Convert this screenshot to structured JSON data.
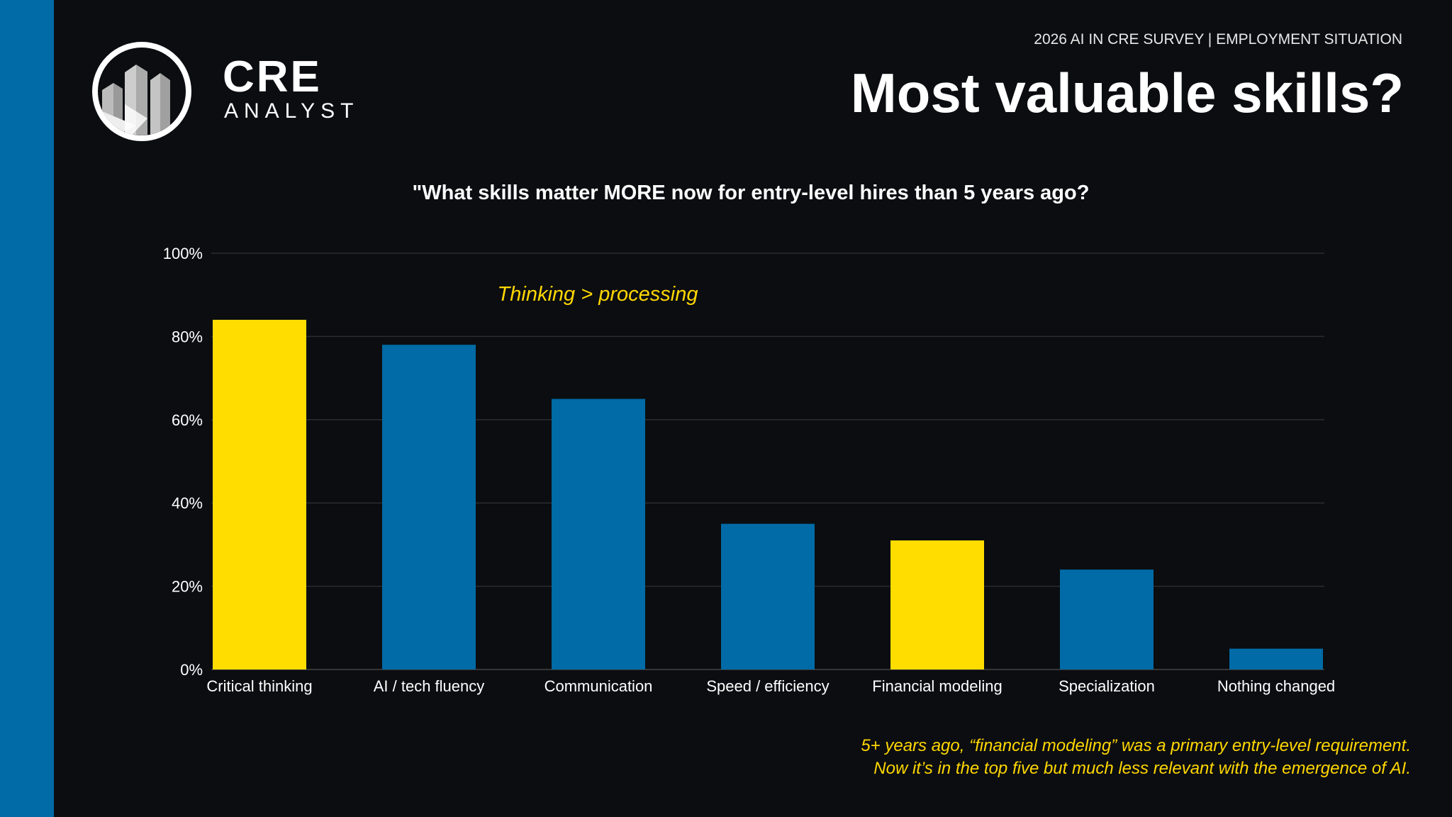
{
  "header": {
    "brand_top": "CRE",
    "brand_bottom": "ANALYST",
    "survey_label": "2026 AI IN CRE SURVEY | EMPLOYMENT SITUATION",
    "title": "Most valuable skills?"
  },
  "chart_data": {
    "type": "bar",
    "title": "\"What skills matter MORE now for entry-level hires than 5 years ago?",
    "categories": [
      "Critical thinking",
      "AI / tech fluency",
      "Communication",
      "Speed / efficiency",
      "Financial modeling",
      "Specialization",
      "Nothing changed"
    ],
    "values": [
      84,
      78,
      65,
      35,
      31,
      24,
      5
    ],
    "highlighted": [
      true,
      false,
      false,
      false,
      true,
      false,
      false
    ],
    "ylim": [
      0,
      100
    ],
    "yticks": [
      "0%",
      "20%",
      "40%",
      "60%",
      "80%",
      "100%"
    ],
    "ytick_values": [
      0,
      20,
      40,
      60,
      80,
      100
    ],
    "grid": true,
    "annotation": "Thinking > processing",
    "colors": {
      "highlight": "#ffdd00",
      "default": "#006ba6",
      "grid": "#2a2c30"
    }
  },
  "footnote": {
    "line1": "5+ years ago, “financial modeling” was a primary entry-level requirement.",
    "line2": "Now it’s in the top five but much less relevant with the emergence of AI."
  }
}
